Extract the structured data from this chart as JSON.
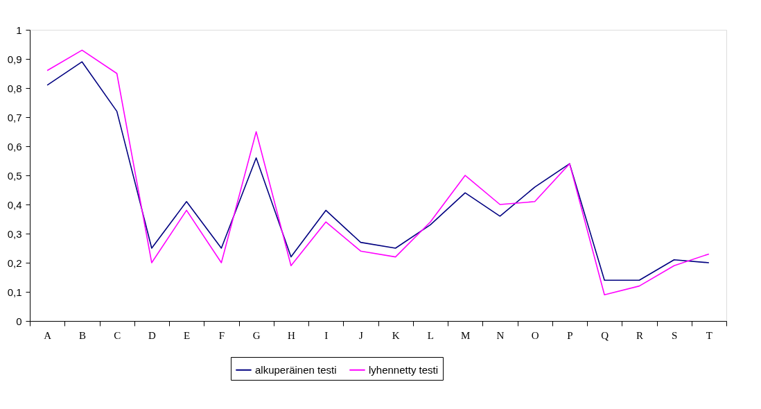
{
  "chart_data": {
    "type": "line",
    "categories": [
      "A",
      "B",
      "C",
      "D",
      "E",
      "F",
      "G",
      "H",
      "I",
      "J",
      "K",
      "L",
      "M",
      "N",
      "O",
      "P",
      "Q",
      "R",
      "S",
      "T"
    ],
    "series": [
      {
        "name": "alkuperäinen testi",
        "color": "#000080",
        "values": [
          0.81,
          0.89,
          0.72,
          0.25,
          0.41,
          0.25,
          0.56,
          0.22,
          0.38,
          0.27,
          0.25,
          0.33,
          0.44,
          0.36,
          0.46,
          0.54,
          0.14,
          0.14,
          0.21,
          0.2
        ]
      },
      {
        "name": "lyhennetty testi",
        "color": "#ff00ff",
        "values": [
          0.86,
          0.93,
          0.85,
          0.2,
          0.38,
          0.2,
          0.65,
          0.19,
          0.34,
          0.24,
          0.22,
          0.34,
          0.5,
          0.4,
          0.41,
          0.54,
          0.09,
          0.12,
          0.19,
          0.23
        ]
      }
    ],
    "ylim": [
      0,
      1
    ],
    "yticks": [
      0,
      {
        "value": 0.1,
        "label": "0,1"
      },
      {
        "value": 0.2,
        "label": "0,2"
      },
      {
        "value": 0.3,
        "label": "0,3"
      },
      {
        "value": 0.4,
        "label": "0,4"
      },
      {
        "value": 0.5,
        "label": "0,5"
      },
      {
        "value": 0.6,
        "label": "0,6"
      },
      {
        "value": 0.7,
        "label": "0,7"
      },
      {
        "value": 0.8,
        "label": "0,8"
      },
      {
        "value": 0.9,
        "label": "0,9"
      },
      1
    ],
    "grid": false,
    "legend": "bottom",
    "marker": "none",
    "line_style": "solid"
  }
}
